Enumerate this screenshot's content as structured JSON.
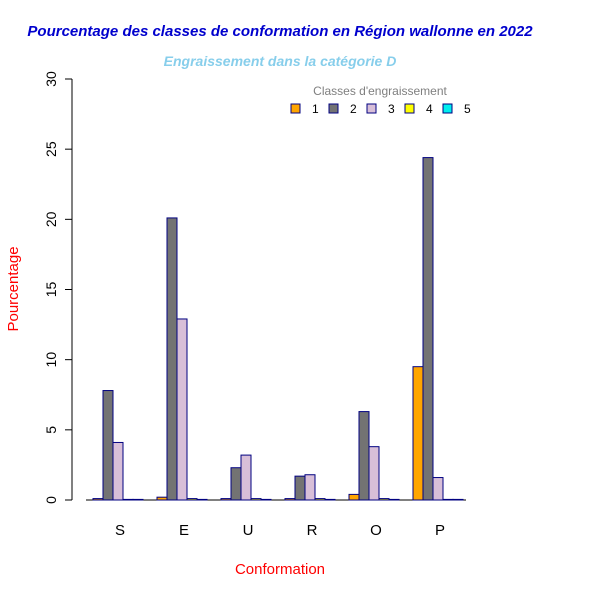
{
  "chart_data": {
    "type": "bar",
    "title": "Pourcentage des classes de conformation en Région wallonne en 2022",
    "subtitle": "Engraissement dans la catégorie D",
    "xlabel": "Conformation",
    "ylabel": "Pourcentage",
    "categories": [
      "S",
      "E",
      "U",
      "R",
      "O",
      "P"
    ],
    "ylim": [
      0,
      30
    ],
    "yticks": [
      "0",
      "5",
      "10",
      "15",
      "20",
      "25",
      "30"
    ],
    "legend": {
      "title": "Classes d'engraissement",
      "placement": "top-right"
    },
    "series": [
      {
        "name": "1",
        "color": "#FFA500",
        "values": [
          0.1,
          0.2,
          0.1,
          0.1,
          0.4,
          9.5
        ]
      },
      {
        "name": "2",
        "color": "#737373",
        "values": [
          7.8,
          20.1,
          2.3,
          1.7,
          6.3,
          24.4
        ]
      },
      {
        "name": "3",
        "color": "#D8BFD8",
        "values": [
          4.1,
          12.9,
          3.2,
          1.8,
          3.8,
          1.6
        ]
      },
      {
        "name": "4",
        "color": "#FFFF00",
        "values": [
          0.0,
          0.1,
          0.1,
          0.1,
          0.1,
          0.0
        ]
      },
      {
        "name": "5",
        "color": "#00EEEE",
        "values": [
          0.0,
          0.0,
          0.0,
          0.0,
          0.0,
          0.0
        ]
      }
    ],
    "colors": {
      "title": "#0000CD",
      "subtitle": "#87CEEB",
      "axis_label": "#FF0000",
      "bar_border": "#000080",
      "legend_title": "#7F7F7F"
    }
  }
}
